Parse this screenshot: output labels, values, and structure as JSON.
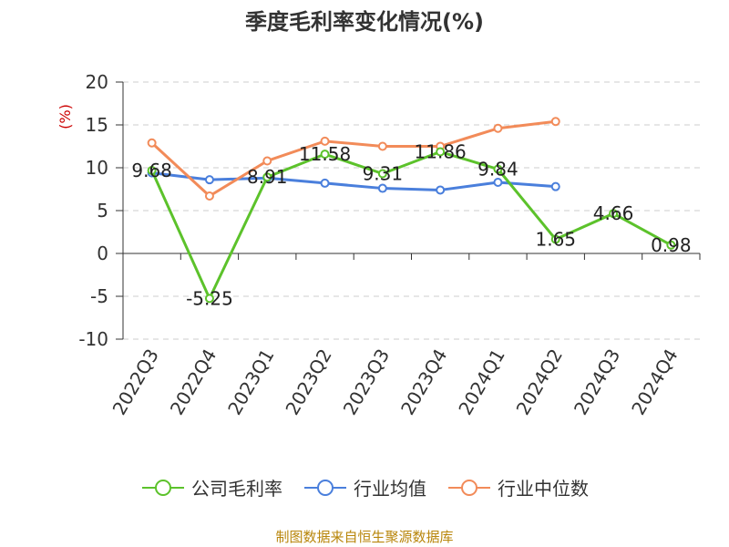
{
  "chart_data": {
    "type": "line",
    "title": "季度毛利率变化情况(%)",
    "ylabel": "(%)",
    "xlabel": "",
    "categories": [
      "2022Q3",
      "2022Q4",
      "2023Q1",
      "2023Q2",
      "2023Q3",
      "2023Q4",
      "2024Q1",
      "2024Q2",
      "2024Q3",
      "2024Q4"
    ],
    "ylim": [
      -10,
      20
    ],
    "yticks": [
      20,
      15,
      10,
      5,
      0,
      -5,
      -10
    ],
    "grid": "horizontal-dashed",
    "legend_position": "bottom",
    "series": [
      {
        "name": "公司毛利率",
        "color": "#5cc22b",
        "values": [
          9.68,
          -5.25,
          8.91,
          11.58,
          9.31,
          11.86,
          9.84,
          1.65,
          4.66,
          0.98
        ],
        "labels": [
          "9.68",
          "-5.25",
          "8.91",
          "11.58",
          "9.31",
          "11.86",
          "9.84",
          "1.65",
          "4.66",
          "0.98"
        ]
      },
      {
        "name": "行业均值",
        "color": "#4a7fdc",
        "values": [
          9.4,
          8.6,
          8.8,
          8.2,
          7.6,
          7.4,
          8.3,
          7.8,
          null,
          null
        ]
      },
      {
        "name": "行业中位数",
        "color": "#f28b59",
        "values": [
          12.9,
          6.7,
          10.8,
          13.1,
          12.5,
          12.5,
          14.6,
          15.4,
          null,
          null
        ]
      }
    ]
  },
  "source_note": "制图数据来自恒生聚源数据库"
}
